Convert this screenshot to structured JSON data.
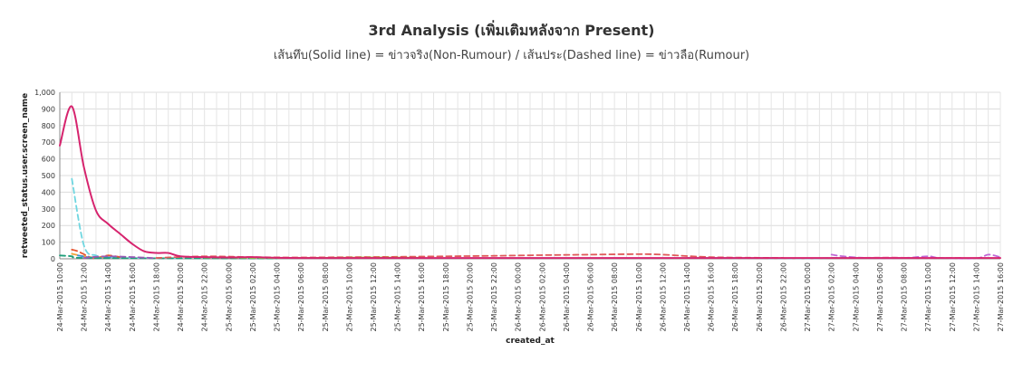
{
  "chart_data": {
    "type": "line",
    "title": "3rd Analysis (เพิ่มเติมหลังจาก Present)",
    "subtitle": "เส้นทึบ(Solid line) = ข่าวจริง(Non-Rumour) / เส้นประ(Dashed line) = ข่าวลือ(Rumour)",
    "xlabel": "created_at",
    "ylabel": "retweeted_status.user.screen_name",
    "ylim": [
      0,
      1000
    ],
    "yticks": [
      "0",
      "100",
      "200",
      "300",
      "400",
      "500",
      "600",
      "700",
      "800",
      "900",
      "1,000"
    ],
    "x_start": "2015-03-24T10:00",
    "x_end": "2015-03-27T16:00",
    "xticks": [
      "24-Mar-2015 10:00",
      "24-Mar-2015 12:00",
      "24-Mar-2015 14:00",
      "24-Mar-2015 16:00",
      "24-Mar-2015 18:00",
      "24-Mar-2015 20:00",
      "24-Mar-2015 22:00",
      "25-Mar-2015 00:00",
      "25-Mar-2015 02:00",
      "25-Mar-2015 04:00",
      "25-Mar-2015 06:00",
      "25-Mar-2015 08:00",
      "25-Mar-2015 10:00",
      "25-Mar-2015 12:00",
      "25-Mar-2015 14:00",
      "25-Mar-2015 16:00",
      "25-Mar-2015 18:00",
      "25-Mar-2015 20:00",
      "25-Mar-2015 22:00",
      "26-Mar-2015 00:00",
      "26-Mar-2015 02:00",
      "26-Mar-2015 04:00",
      "26-Mar-2015 06:00",
      "26-Mar-2015 08:00",
      "26-Mar-2015 10:00",
      "26-Mar-2015 12:00",
      "26-Mar-2015 14:00",
      "26-Mar-2015 16:00",
      "26-Mar-2015 18:00",
      "26-Mar-2015 20:00",
      "26-Mar-2015 22:00",
      "27-Mar-2015 00:00",
      "27-Mar-2015 02:00",
      "27-Mar-2015 04:00",
      "27-Mar-2015 06:00",
      "27-Mar-2015 08:00",
      "27-Mar-2015 10:00",
      "27-Mar-2015 12:00",
      "27-Mar-2015 14:00",
      "27-Mar-2015 16:00"
    ],
    "grid": true,
    "legend": "none",
    "series": [
      {
        "color": "#d6246e",
        "style": "solid",
        "x": [
          "2015-03-24T10:00",
          "2015-03-24T11:00",
          "2015-03-24T12:00",
          "2015-03-24T13:00",
          "2015-03-24T14:00",
          "2015-03-24T15:00",
          "2015-03-24T16:00",
          "2015-03-24T17:00",
          "2015-03-24T18:00",
          "2015-03-24T19:00",
          "2015-03-24T20:00",
          "2015-03-24T22:00",
          "2015-03-25T00:00",
          "2015-03-25T02:00",
          "2015-03-25T06:00",
          "2015-03-26T00:00",
          "2015-03-26T12:00",
          "2015-03-27T00:00",
          "2015-03-27T16:00"
        ],
        "y": [
          680,
          915,
          550,
          290,
          210,
          150,
          90,
          45,
          35,
          35,
          15,
          10,
          8,
          10,
          5,
          5,
          5,
          5,
          5
        ]
      },
      {
        "color": "#6fd6e0",
        "style": "dashed",
        "x": [
          "2015-03-24T11:00",
          "2015-03-24T12:00",
          "2015-03-24T13:00",
          "2015-03-24T14:00",
          "2015-03-24T16:00",
          "2015-03-24T20:00"
        ],
        "y": [
          480,
          80,
          20,
          10,
          5,
          3
        ]
      },
      {
        "color": "#e8542f",
        "style": "dashed",
        "x": [
          "2015-03-24T11:00",
          "2015-03-24T11:30",
          "2015-03-24T12:30",
          "2015-03-24T13:00",
          "2015-03-24T14:00",
          "2015-03-24T15:00"
        ],
        "y": [
          55,
          45,
          10,
          5,
          20,
          10
        ]
      },
      {
        "color": "#f2a33a",
        "style": "dashed",
        "x": [
          "2015-03-24T11:00",
          "2015-03-24T12:00",
          "2015-03-24T13:00",
          "2015-03-24T14:00"
        ],
        "y": [
          30,
          15,
          8,
          10
        ]
      },
      {
        "color": "#3a8fd9",
        "style": "dashed",
        "x": [
          "2015-03-24T11:30",
          "2015-03-24T12:30",
          "2015-03-24T13:30",
          "2015-03-24T14:30"
        ],
        "y": [
          20,
          8,
          5,
          12
        ]
      },
      {
        "color": "#1f9e7a",
        "style": "dashed",
        "x": [
          "2015-03-24T10:00",
          "2015-03-24T11:00",
          "2015-03-24T12:00",
          "2015-03-24T20:00",
          "2015-03-25T04:00"
        ],
        "y": [
          20,
          15,
          5,
          3,
          2
        ]
      },
      {
        "color": "#9b59b6",
        "style": "dashed",
        "x": [
          "2015-03-24T12:00",
          "2015-03-24T14:00",
          "2015-03-24T18:00"
        ],
        "y": [
          5,
          15,
          4
        ]
      },
      {
        "color": "#e05a5a",
        "style": "dashed",
        "x": [
          "2015-03-24T18:00",
          "2015-03-24T22:00",
          "2015-03-25T02:00",
          "2015-03-25T06:00",
          "2015-03-25T10:00",
          "2015-03-25T14:00",
          "2015-03-25T18:00",
          "2015-03-25T22:00",
          "2015-03-26T02:00",
          "2015-03-26T06:00",
          "2015-03-26T10:00",
          "2015-03-26T12:00",
          "2015-03-26T16:00",
          "2015-03-26T22:00"
        ],
        "y": [
          5,
          15,
          10,
          8,
          10,
          12,
          15,
          18,
          22,
          25,
          28,
          25,
          10,
          5
        ]
      },
      {
        "color": "#a3c93a",
        "style": "dashed",
        "x": [
          "2015-03-24T22:00",
          "2015-03-25T04:00",
          "2015-03-25T08:00",
          "2015-03-25T12:00",
          "2015-03-25T16:00"
        ],
        "y": [
          8,
          5,
          6,
          8,
          6
        ]
      },
      {
        "color": "#5bc8e0",
        "style": "dashed",
        "x": [
          "2015-03-26T14:00",
          "2015-03-26T20:00",
          "2015-03-27T00:00",
          "2015-03-27T02:00",
          "2015-03-27T04:00"
        ],
        "y": [
          5,
          4,
          3,
          5,
          8
        ]
      },
      {
        "color": "#c06ad6",
        "style": "dashed",
        "x": [
          "2015-03-27T02:00",
          "2015-03-27T03:00",
          "2015-03-27T05:00",
          "2015-03-27T08:00",
          "2015-03-27T10:00",
          "2015-03-27T11:00",
          "2015-03-27T14:00",
          "2015-03-27T15:00",
          "2015-03-27T16:00"
        ],
        "y": [
          25,
          15,
          5,
          5,
          15,
          5,
          3,
          25,
          10
        ]
      },
      {
        "color": "#f08ab0",
        "style": "dashed",
        "x": [
          "2015-03-27T04:00",
          "2015-03-27T07:00",
          "2015-03-27T09:00",
          "2015-03-27T13:00"
        ],
        "y": [
          5,
          8,
          4,
          6
        ]
      }
    ]
  }
}
